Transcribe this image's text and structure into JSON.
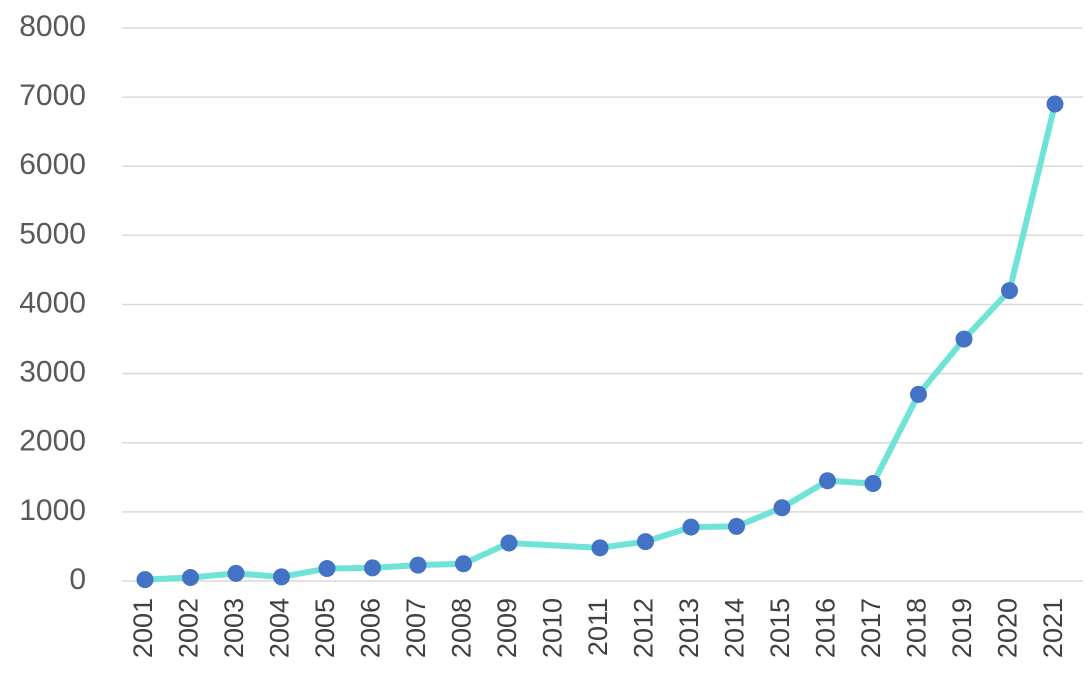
{
  "chart_data": {
    "type": "line",
    "title": "",
    "xlabel": "",
    "ylabel": "",
    "ylim": [
      0,
      8000
    ],
    "yticks": [
      "0",
      "1000",
      "2000",
      "3000",
      "4000",
      "5000",
      "6000",
      "7000",
      "8000"
    ],
    "grid": true,
    "legend": "none",
    "categories": [
      "2001",
      "2002",
      "2003",
      "2004",
      "2005",
      "2006",
      "2007",
      "2008",
      "2009",
      "2010",
      "2011",
      "2012",
      "2013",
      "2014",
      "2015",
      "2016",
      "2017",
      "2018",
      "2019",
      "2020",
      "2021"
    ],
    "series": [
      {
        "values": [
          20,
          50,
          110,
          60,
          180,
          190,
          230,
          250,
          550,
          null,
          480,
          570,
          780,
          790,
          1060,
          1450,
          1410,
          2700,
          3500,
          4200,
          6900
        ],
        "line_color": "#6ee3d6",
        "marker_color": "#4472c4"
      }
    ]
  }
}
